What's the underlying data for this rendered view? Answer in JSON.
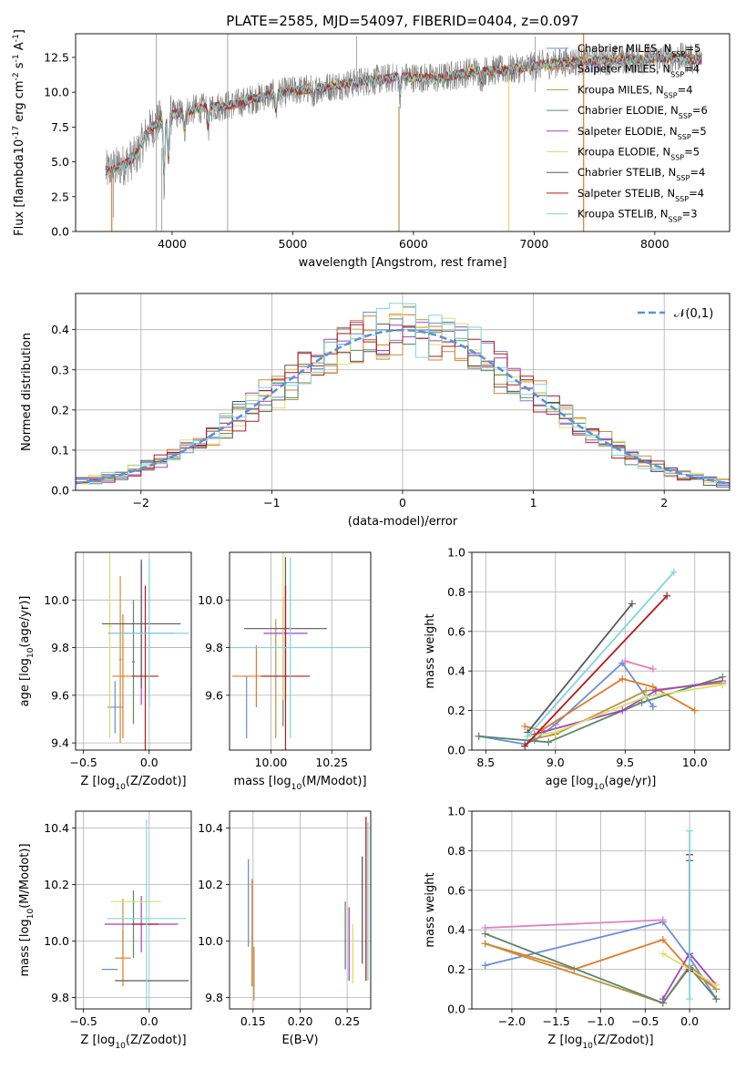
{
  "colors": [
    "#6b8ed6",
    "#e07b28",
    "#c0913f",
    "#5b8a6b",
    "#a142c3",
    "#d8e06a",
    "#5a5a5a",
    "#b51a1a",
    "#7fd6de"
  ],
  "noise_color": "#808080",
  "model_names": [
    "Chabrier MILES, N$_{SSP}$=5",
    "Salpeter MILES, N$_{SSP}$=4",
    "Kroupa MILES, N$_{SSP}$=4",
    "Chabrier ELODIE, N$_{SSP}$=6",
    "Salpeter ELODIE, N$_{SSP}$=5",
    "Kroupa ELODIE, N$_{SSP}$=5",
    "Chabrier STELIB, N$_{SSP}$=4",
    "Salpeter STELIB, N$_{SSP}$=4",
    "Kroupa STELIB, N$_{SSP}$=3"
  ],
  "chart_data": [
    {
      "type": "line",
      "title": "PLATE=2585, MJD=54097, FIBERID=0404, z=0.097",
      "xlabel": "wavelength [Angstrom, rest frame]",
      "ylabel": "Flux [f$_\\lambda$10$^{-17}$ erg cm$^{-2}$ s$^{-1}$ A$^{-1}$]",
      "xlim": [
        3200,
        8620
      ],
      "ylim": [
        0,
        14.2
      ],
      "xticks": [
        4000,
        5000,
        6000,
        7000,
        8000
      ],
      "yticks": [
        0.0,
        2.5,
        5.0,
        7.5,
        10.0,
        12.5
      ],
      "legend": "upper right",
      "continuum": [
        [
          3450,
          4.3
        ],
        [
          3600,
          4.8
        ],
        [
          3700,
          5.4
        ],
        [
          3800,
          7.2
        ],
        [
          3900,
          8.0
        ],
        [
          4000,
          8.4
        ],
        [
          4200,
          8.8
        ],
        [
          4500,
          9.1
        ],
        [
          4800,
          9.8
        ],
        [
          5000,
          10.1
        ],
        [
          5300,
          10.4
        ],
        [
          5600,
          10.8
        ],
        [
          5900,
          11.1
        ],
        [
          6200,
          11.0
        ],
        [
          6500,
          11.5
        ],
        [
          6800,
          11.6
        ],
        [
          7000,
          11.9
        ],
        [
          7300,
          12.2
        ],
        [
          7600,
          12.3
        ],
        [
          7900,
          12.4
        ],
        [
          8200,
          12.5
        ],
        [
          8390,
          12.3
        ]
      ]
    },
    {
      "type": "bar",
      "xlabel": "(data-model)/error",
      "ylabel": "Normed distribution",
      "xlim": [
        -2.5,
        2.5
      ],
      "ylim": [
        0,
        0.49
      ],
      "xticks": [
        -2,
        -1,
        0,
        1,
        2
      ],
      "yticks": [
        0.0,
        0.1,
        0.2,
        0.3,
        0.4
      ],
      "bin_width": 0.1,
      "normal_label": "$\\mathcal{N}(0,1)$",
      "legend": "upper right"
    },
    {
      "type": "scatter",
      "xlabel": "Z [log$_{10}$($Z/Z_\\odot$)]",
      "ylabel": "age  [log$_{10}$($age/yr$)]",
      "xlim": [
        -0.56,
        0.32
      ],
      "ylim": [
        9.37,
        10.2
      ],
      "xticks": [
        -0.5,
        0.0
      ],
      "yticks": [
        9.4,
        9.6,
        9.8,
        10.0
      ],
      "points": [
        {
          "x": -0.26,
          "y": 9.55,
          "xe": 0.06,
          "ye": 0.11
        },
        {
          "x": -0.2,
          "y": 9.68,
          "xe": 0.08,
          "ye": 0.26
        },
        {
          "x": -0.22,
          "y": 9.75,
          "xe": 0.01,
          "ye": 0.35
        },
        {
          "x": -0.12,
          "y": 9.74,
          "xe": 0.01,
          "ye": 0.26
        },
        {
          "x": -0.06,
          "y": 9.86,
          "xe": 0.25,
          "ye": 0.3
        },
        {
          "x": -0.3,
          "y": 9.89,
          "xe": 0.02,
          "ye": 0.47
        },
        {
          "x": -0.06,
          "y": 9.9,
          "xe": 0.3,
          "ye": 0.27
        },
        {
          "x": -0.03,
          "y": 9.68,
          "xe": 0.1,
          "ye": 0.38
        },
        {
          "x": 0.0,
          "y": 9.86,
          "xe": 0.3,
          "ye": 0.31
        }
      ]
    },
    {
      "type": "scatter",
      "xlabel": "mass [log$_{10}$($M/M_\\odot$)]",
      "ylabel": "",
      "xlim": [
        9.83,
        10.41
      ],
      "ylim": [
        9.37,
        10.2
      ],
      "xticks": [
        10.0,
        10.25
      ],
      "yticks": [
        9.6,
        9.8,
        10.0
      ],
      "points": [
        {
          "x": 9.9,
          "y": 9.55,
          "xe": 0.0,
          "ye": 0.13
        },
        {
          "x": 9.94,
          "y": 9.68,
          "xe": 0.1,
          "ye": 0.13
        },
        {
          "x": 10.02,
          "y": 9.67,
          "xe": 0.0,
          "ye": 0.25
        },
        {
          "x": 10.05,
          "y": 9.74,
          "xe": 0.0,
          "ye": 0.27
        },
        {
          "x": 10.06,
          "y": 9.86,
          "xe": 0.09,
          "ye": 0.2
        },
        {
          "x": 10.05,
          "y": 9.89,
          "xe": 0.0,
          "ye": 0.31
        },
        {
          "x": 10.06,
          "y": 9.88,
          "xe": 0.17,
          "ye": 0.3
        },
        {
          "x": 10.06,
          "y": 9.68,
          "xe": 0.1,
          "ye": 0.38
        },
        {
          "x": 10.08,
          "y": 9.8,
          "xe": 0.3,
          "ye": 0.38
        }
      ]
    },
    {
      "type": "line",
      "xlabel": "age  [log$_{10}$($age/yr$)]",
      "ylabel": "mass weight",
      "xlim": [
        8.4,
        10.25
      ],
      "ylim": [
        0,
        1.0
      ],
      "xticks": [
        8.5,
        9.0,
        9.5,
        10.0
      ],
      "yticks": [
        0.0,
        0.2,
        0.4,
        0.6,
        0.8,
        1.0
      ],
      "series": [
        {
          "x": [
            8.45,
            8.78,
            8.85,
            9.0,
            9.48,
            9.7,
            9.7
          ],
          "y": [
            0.07,
            0.03,
            0.05,
            0.13,
            0.44,
            0.22,
            0.22
          ]
        },
        {
          "x": [
            8.78,
            8.9,
            9.48,
            9.7,
            10.0
          ],
          "y": [
            0.12,
            0.1,
            0.36,
            0.32,
            0.2
          ]
        },
        {
          "x": [
            8.8,
            9.0,
            9.65,
            10.2
          ],
          "y": [
            0.05,
            0.08,
            0.3,
            0.34
          ]
        },
        {
          "x": [
            8.45,
            8.95,
            9.62,
            10.2
          ],
          "y": [
            0.07,
            0.04,
            0.24,
            0.37
          ]
        },
        {
          "x": [
            8.85,
            9.48,
            9.72,
            10.2
          ],
          "y": [
            0.08,
            0.2,
            0.3,
            0.35
          ]
        },
        {
          "x": [
            8.8,
            9.0,
            9.65,
            10.2
          ],
          "y": [
            0.07,
            0.09,
            0.27,
            0.33
          ]
        },
        {
          "x": [
            8.8,
            9.55
          ],
          "y": [
            0.09,
            0.74
          ]
        },
        {
          "x": [
            8.78,
            9.8
          ],
          "y": [
            0.02,
            0.78
          ]
        },
        {
          "x": [
            8.8,
            9.85
          ],
          "y": [
            0.07,
            0.9
          ]
        },
        {
          "x": [
            9.5,
            9.7
          ],
          "y": [
            0.45,
            0.41
          ]
        }
      ]
    },
    {
      "type": "scatter",
      "xlabel": "Z [log$_{10}$($Z/Z_\\odot$)]",
      "ylabel": "mass [log$_{10}$($M/M_\\odot$)]",
      "xlim": [
        -0.56,
        0.32
      ],
      "ylim": [
        9.76,
        10.46
      ],
      "xticks": [
        -0.5,
        0.0
      ],
      "yticks": [
        9.8,
        10.0,
        10.2,
        10.4
      ],
      "points": [
        {
          "x": -0.3,
          "y": 9.9,
          "xe": 0.06,
          "ye": 0.0
        },
        {
          "x": -0.2,
          "y": 9.94,
          "xe": 0.06,
          "ye": 0.1
        },
        {
          "x": -0.2,
          "y": 10.05,
          "xe": 0.0,
          "ye": 0.1
        },
        {
          "x": -0.12,
          "y": 10.06,
          "xe": 0.0,
          "ye": 0.12
        },
        {
          "x": -0.06,
          "y": 10.06,
          "xe": 0.28,
          "ye": 0.1
        },
        {
          "x": -0.1,
          "y": 10.14,
          "xe": 0.19,
          "ye": 0.0
        },
        {
          "x": 0.02,
          "y": 9.86,
          "xe": 0.28,
          "ye": 0.0
        },
        {
          "x": -0.03,
          "y": 10.06,
          "xe": 0.1,
          "ye": 0.0
        },
        {
          "x": -0.02,
          "y": 10.08,
          "xe": 0.3,
          "ye": 0.35
        }
      ]
    },
    {
      "type": "scatter",
      "xlabel": "E(B-V)",
      "ylabel": "",
      "xlim": [
        0.125,
        0.275
      ],
      "ylim": [
        9.76,
        10.46
      ],
      "xticks": [
        0.15,
        0.2,
        0.25
      ],
      "yticks": [
        9.8,
        10.0,
        10.2,
        10.4
      ],
      "segments": [
        {
          "x": 0.145,
          "y0": 9.98,
          "y1": 10.29
        },
        {
          "x": 0.149,
          "y0": 9.84,
          "y1": 10.22
        },
        {
          "x": 0.151,
          "y0": 9.79,
          "y1": 9.98
        },
        {
          "x": 0.248,
          "y0": 9.9,
          "y1": 10.14
        },
        {
          "x": 0.252,
          "y0": 9.86,
          "y1": 10.12
        },
        {
          "x": 0.256,
          "y0": 9.85,
          "y1": 10.06
        },
        {
          "x": 0.266,
          "y0": 9.92,
          "y1": 10.3
        },
        {
          "x": 0.27,
          "y0": 9.86,
          "y1": 10.44
        },
        {
          "x": 0.272,
          "y0": 9.86,
          "y1": 10.42
        }
      ]
    },
    {
      "type": "line",
      "xlabel": "Z [log$_{10}$($Z/Z_\\odot$)]",
      "ylabel": "mass weight",
      "xlim": [
        -2.45,
        0.45
      ],
      "ylim": [
        0,
        1.0
      ],
      "xticks": [
        -2.0,
        -1.5,
        -1.0,
        -0.5,
        0.0
      ],
      "yticks": [
        0.0,
        0.2,
        0.4,
        0.6,
        0.8,
        1.0
      ],
      "series": [
        {
          "x": [
            -2.3,
            -0.3,
            0.0,
            0.3
          ],
          "y": [
            0.22,
            0.44,
            0.26,
            0.05
          ]
        },
        {
          "x": [
            -2.3,
            -1.3,
            -0.3,
            0.0,
            0.3
          ],
          "y": [
            0.33,
            0.2,
            0.35,
            0.2,
            0.1
          ]
        },
        {
          "x": [
            -2.3,
            -0.3,
            0.0,
            0.3
          ],
          "y": [
            0.33,
            0.03,
            0.22,
            0.1
          ]
        },
        {
          "x": [
            -2.3,
            -0.3,
            0.0,
            0.3
          ],
          "y": [
            0.38,
            0.03,
            0.21,
            0.05
          ]
        },
        {
          "x": [
            -0.3,
            0.0,
            0.3
          ],
          "y": [
            0.05,
            0.28,
            0.12
          ]
        },
        {
          "x": [
            -0.3,
            0.0,
            0.3
          ],
          "y": [
            0.28,
            0.2,
            0.12
          ]
        },
        {
          "x": [
            0.0,
            0.0
          ],
          "y": [
            0.75,
            0.2
          ]
        },
        {
          "x": [
            0.0,
            0.0
          ],
          "y": [
            0.78,
            0.19
          ]
        },
        {
          "x": [
            0.0,
            0.0
          ],
          "y": [
            0.9,
            0.05
          ]
        },
        {
          "x": [
            -2.3,
            -0.3
          ],
          "y": [
            0.41,
            0.45
          ]
        }
      ]
    }
  ]
}
